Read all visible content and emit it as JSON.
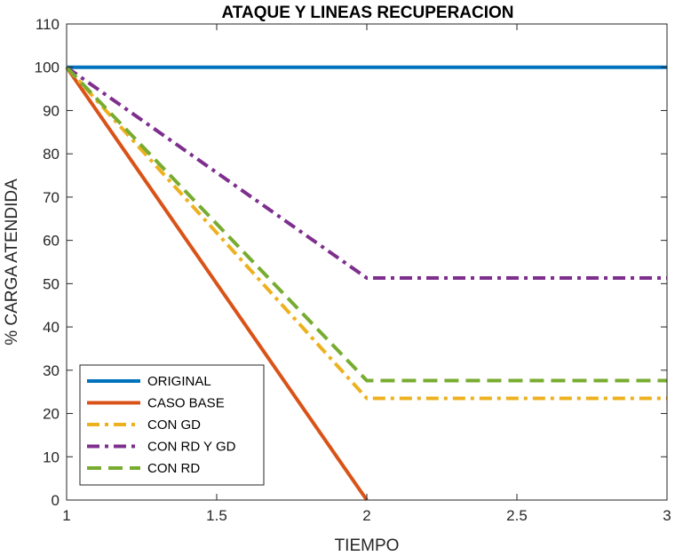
{
  "chart_data": {
    "type": "line",
    "title": "ATAQUE Y LINEAS RECUPERACION",
    "xlabel": "TIEMPO",
    "ylabel": "% CARGA ATENDIDA",
    "xlim": [
      1,
      3
    ],
    "ylim": [
      0,
      110
    ],
    "xticks": [
      1,
      1.5,
      2,
      2.5,
      3
    ],
    "xtick_labels": [
      "1",
      "1.5",
      "2",
      "2.5",
      "3"
    ],
    "yticks": [
      0,
      10,
      20,
      30,
      40,
      50,
      60,
      70,
      80,
      90,
      100,
      110
    ],
    "ytick_labels": [
      "0",
      "10",
      "20",
      "30",
      "40",
      "50",
      "60",
      "70",
      "80",
      "90",
      "100",
      "110"
    ],
    "grid": false,
    "legend_position": "bottom-left",
    "series": [
      {
        "name": "ORIGINAL",
        "color": "#0072BD",
        "dash": "solid",
        "x": [
          1,
          2,
          3
        ],
        "y": [
          100,
          100,
          100
        ]
      },
      {
        "name": "CASO BASE",
        "color": "#D95319",
        "dash": "solid",
        "x": [
          1,
          2
        ],
        "y": [
          100,
          0
        ]
      },
      {
        "name": "CON GD",
        "color": "#EDB120",
        "dash": "dashdot",
        "x": [
          1,
          2,
          3
        ],
        "y": [
          100,
          23.5,
          23.5
        ]
      },
      {
        "name": "CON RD Y GD",
        "color": "#7E2F8E",
        "dash": "dashdot",
        "x": [
          1,
          2,
          3
        ],
        "y": [
          100,
          51.3,
          51.3
        ]
      },
      {
        "name": "CON RD",
        "color": "#77AC30",
        "dash": "dashed",
        "x": [
          1,
          2,
          3
        ],
        "y": [
          100,
          27.6,
          27.6
        ]
      }
    ]
  }
}
